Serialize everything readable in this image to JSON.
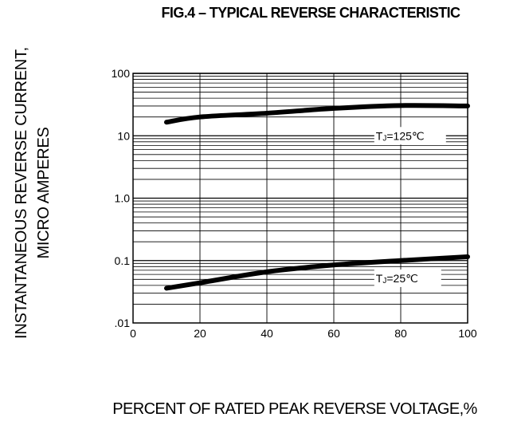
{
  "chart_data": {
    "type": "line",
    "title": "FIG.4 – TYPICAL REVERSE CHARACTERISTIC",
    "xlabel": "PERCENT OF RATED PEAK REVERSE VOLTAGE,%",
    "ylabel": [
      "INSTANTANEOUS REVERSE CURRENT,",
      "MICRO AMPERES"
    ],
    "x_ticks": [
      "0",
      "20",
      "40",
      "60",
      "80",
      "100"
    ],
    "y_ticks": [
      "100",
      "10",
      "1.0",
      "0.1",
      ".01"
    ],
    "xlim": [
      0,
      100
    ],
    "ylim": [
      0.01,
      100
    ],
    "yscale": "log",
    "grid": true,
    "series": [
      {
        "name": "TJ=125℃",
        "label_main": "T",
        "label_sub": "J",
        "label_rest": "=125℃",
        "x": [
          10,
          20,
          40,
          60,
          80,
          100
        ],
        "values": [
          16.5,
          20,
          23,
          27.5,
          30.5,
          30
        ]
      },
      {
        "name": "TJ=25℃",
        "label_main": "T",
        "label_sub": "J",
        "label_rest": "=25℃",
        "x": [
          10,
          20,
          40,
          60,
          80,
          100
        ],
        "values": [
          0.036,
          0.044,
          0.066,
          0.085,
          0.1,
          0.115
        ]
      }
    ],
    "line_color": "#000000"
  }
}
